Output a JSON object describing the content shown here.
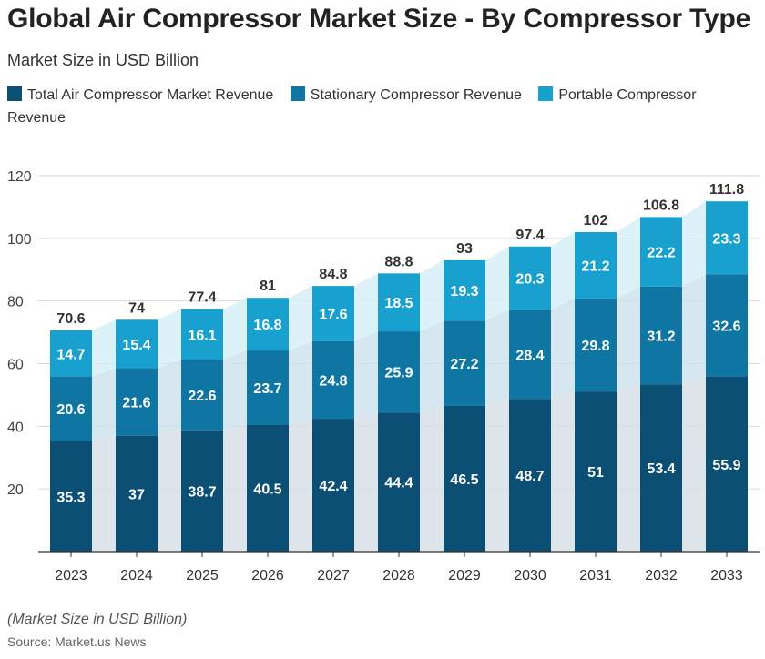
{
  "title": "Global Air Compressor Market Size - By Compressor Type",
  "subtitle": "Market Size in USD Billion",
  "footnote": "(Market Size in USD Billion)",
  "source": "Source: Market.us News",
  "chart_data": {
    "type": "bar",
    "stacked": true,
    "categories": [
      "2023",
      "2024",
      "2025",
      "2026",
      "2027",
      "2028",
      "2029",
      "2030",
      "2031",
      "2032",
      "2033"
    ],
    "series": [
      {
        "name": "Total Air Compressor Market Revenue",
        "color": "#0b4f75",
        "values": [
          35.3,
          37,
          38.7,
          40.5,
          42.4,
          44.4,
          46.5,
          48.7,
          51,
          53.4,
          55.9
        ]
      },
      {
        "name": "Stationary Compressor Revenue",
        "color": "#0f76a3",
        "values": [
          20.6,
          21.6,
          22.6,
          23.7,
          24.8,
          25.9,
          27.2,
          28.4,
          29.8,
          31.2,
          32.6
        ]
      },
      {
        "name": "Portable Compressor Revenue",
        "color": "#18a0cf",
        "values": [
          14.7,
          15.4,
          16.1,
          16.8,
          17.6,
          18.5,
          19.3,
          20.3,
          21.2,
          22.2,
          23.3
        ]
      }
    ],
    "totals": [
      "70.6",
      "74",
      "77.4",
      "81",
      "84.8",
      "88.8",
      "93",
      "97.4",
      "102",
      "106.8",
      "111.8"
    ],
    "yticks": [
      20,
      40,
      60,
      80,
      100,
      120
    ],
    "ylim": [
      0,
      120
    ],
    "grid": true,
    "legend_position": "top"
  }
}
